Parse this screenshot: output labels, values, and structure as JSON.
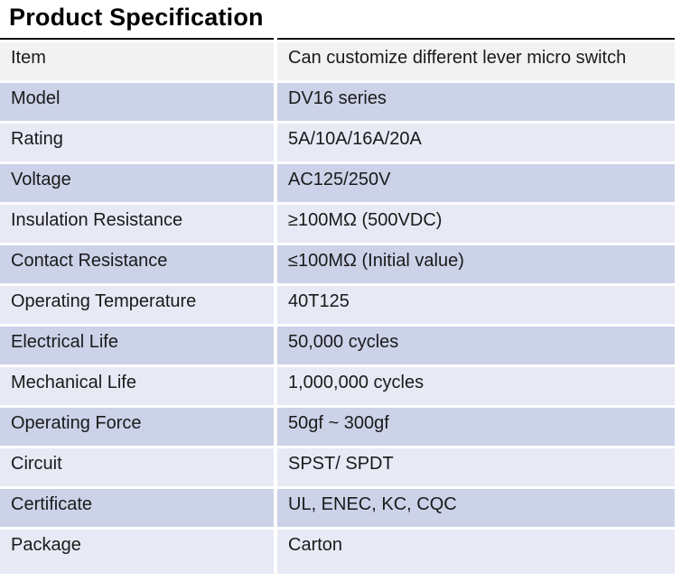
{
  "page": {
    "title": "Product Specification"
  },
  "colors": {
    "background": "#ffffff",
    "row_gray": "#f2f2f2",
    "row_dark": "#ccd2e8",
    "row_light": "#e7e9f5",
    "border": "#111111",
    "text": "#1a1a1a"
  },
  "spec_table": {
    "rows": [
      {
        "label": "Item",
        "value": "Can customize different lever micro switch",
        "shade": "gray"
      },
      {
        "label": "Model",
        "value": "DV16 series",
        "shade": "dark"
      },
      {
        "label": "Rating",
        "value": "5A/10A/16A/20A",
        "shade": "light"
      },
      {
        "label": "Voltage",
        "value": "AC125/250V",
        "shade": "dark"
      },
      {
        "label": "Insulation Resistance",
        "value": "≥100MΩ (500VDC)",
        "shade": "light"
      },
      {
        "label": "Contact Resistance",
        "value": "≤100MΩ (Initial value)",
        "shade": "dark"
      },
      {
        "label": "Operating Temperature",
        "value": "40T125",
        "shade": "light"
      },
      {
        "label": "Electrical Life",
        "value": "50,000 cycles",
        "shade": "dark"
      },
      {
        "label": "Mechanical Life",
        "value": "1,000,000 cycles",
        "shade": "light"
      },
      {
        "label": "Operating Force",
        "value": "50gf ~ 300gf",
        "shade": "dark"
      },
      {
        "label": "Circuit",
        "value": "SPST/ SPDT",
        "shade": "light"
      },
      {
        "label": "Certificate",
        "value": "UL, ENEC, KC, CQC",
        "shade": "dark"
      },
      {
        "label": "Package",
        "value": "Carton",
        "shade": "light"
      }
    ]
  }
}
